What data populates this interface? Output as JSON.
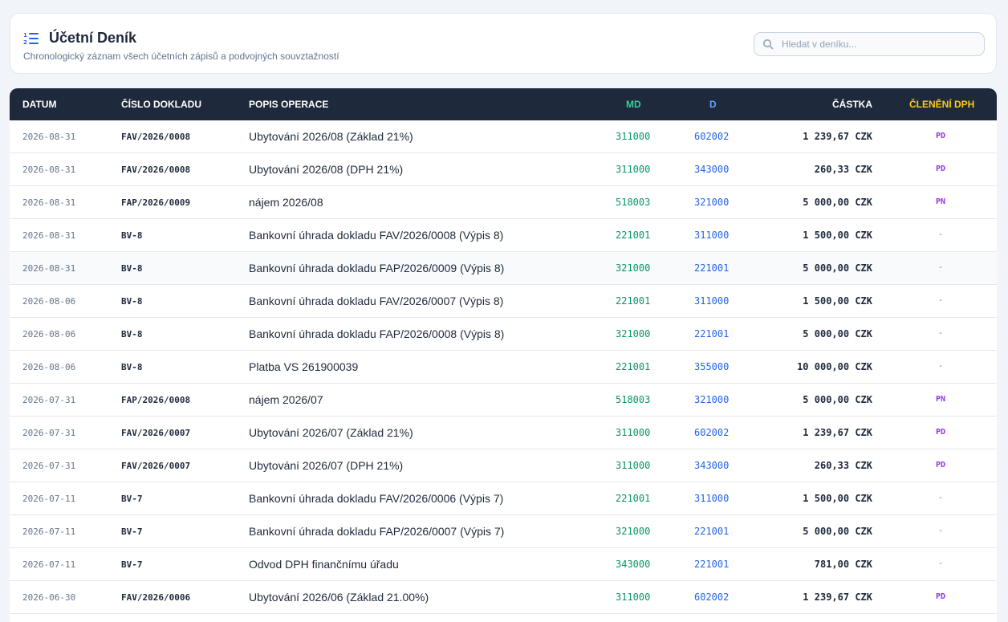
{
  "header": {
    "title": "Účetní Deník",
    "subtitle": "Chronologický záznam všech účetních zápisů a podvojných souvztažností",
    "search_placeholder": "Hledat v deníku..."
  },
  "colors": {
    "md": "#059669",
    "d": "#2563eb",
    "vat_header": "#facc15",
    "vat_badge": "#9333ea",
    "header_bg": "#1e293b"
  },
  "table": {
    "columns": {
      "date": "DATUM",
      "doc": "ČÍSLO DOKLADU",
      "desc": "POPIS OPERACE",
      "md": "MD",
      "d": "D",
      "amount": "ČÁSTKA",
      "vat": "ČLENĚNÍ DPH"
    },
    "rows": [
      {
        "date": "2026-08-31",
        "doc": "FAV/2026/0008",
        "desc": "Ubytování 2026/08 (Základ 21%)",
        "md": "311000",
        "d": "602002",
        "amount": "1 239,67 CZK",
        "vat": "PD"
      },
      {
        "date": "2026-08-31",
        "doc": "FAV/2026/0008",
        "desc": "Ubytování 2026/08 (DPH 21%)",
        "md": "311000",
        "d": "343000",
        "amount": "260,33 CZK",
        "vat": "PD"
      },
      {
        "date": "2026-08-31",
        "doc": "FAP/2026/0009",
        "desc": "nájem 2026/08",
        "md": "518003",
        "d": "321000",
        "amount": "5 000,00 CZK",
        "vat": "PN"
      },
      {
        "date": "2026-08-31",
        "doc": "BV-8",
        "desc": "Bankovní úhrada dokladu FAV/2026/0008 (Výpis 8)",
        "md": "221001",
        "d": "311000",
        "amount": "1 500,00 CZK",
        "vat": "-"
      },
      {
        "date": "2026-08-31",
        "doc": "BV-8",
        "desc": "Bankovní úhrada dokladu FAP/2026/0009 (Výpis 8)",
        "md": "321000",
        "d": "221001",
        "amount": "5 000,00 CZK",
        "vat": "-"
      },
      {
        "date": "2026-08-06",
        "doc": "BV-8",
        "desc": "Bankovní úhrada dokladu FAV/2026/0007 (Výpis 8)",
        "md": "221001",
        "d": "311000",
        "amount": "1 500,00 CZK",
        "vat": "-"
      },
      {
        "date": "2026-08-06",
        "doc": "BV-8",
        "desc": "Bankovní úhrada dokladu FAP/2026/0008 (Výpis 8)",
        "md": "321000",
        "d": "221001",
        "amount": "5 000,00 CZK",
        "vat": "-"
      },
      {
        "date": "2026-08-06",
        "doc": "BV-8",
        "desc": "Platba VS 261900039",
        "md": "221001",
        "d": "355000",
        "amount": "10 000,00 CZK",
        "vat": "-"
      },
      {
        "date": "2026-07-31",
        "doc": "FAP/2026/0008",
        "desc": "nájem 2026/07",
        "md": "518003",
        "d": "321000",
        "amount": "5 000,00 CZK",
        "vat": "PN"
      },
      {
        "date": "2026-07-31",
        "doc": "FAV/2026/0007",
        "desc": "Ubytování 2026/07 (Základ 21%)",
        "md": "311000",
        "d": "602002",
        "amount": "1 239,67 CZK",
        "vat": "PD"
      },
      {
        "date": "2026-07-31",
        "doc": "FAV/2026/0007",
        "desc": "Ubytování 2026/07 (DPH 21%)",
        "md": "311000",
        "d": "343000",
        "amount": "260,33 CZK",
        "vat": "PD"
      },
      {
        "date": "2026-07-11",
        "doc": "BV-7",
        "desc": "Bankovní úhrada dokladu FAV/2026/0006 (Výpis 7)",
        "md": "221001",
        "d": "311000",
        "amount": "1 500,00 CZK",
        "vat": "-"
      },
      {
        "date": "2026-07-11",
        "doc": "BV-7",
        "desc": "Bankovní úhrada dokladu FAP/2026/0007 (Výpis 7)",
        "md": "321000",
        "d": "221001",
        "amount": "5 000,00 CZK",
        "vat": "-"
      },
      {
        "date": "2026-07-11",
        "doc": "BV-7",
        "desc": "Odvod DPH finančnímu úřadu",
        "md": "343000",
        "d": "221001",
        "amount": "781,00 CZK",
        "vat": "-"
      },
      {
        "date": "2026-06-30",
        "doc": "FAV/2026/0006",
        "desc": "Ubytování 2026/06 (Základ 21.00%)",
        "md": "311000",
        "d": "602002",
        "amount": "1 239,67 CZK",
        "vat": "PD"
      }
    ]
  }
}
